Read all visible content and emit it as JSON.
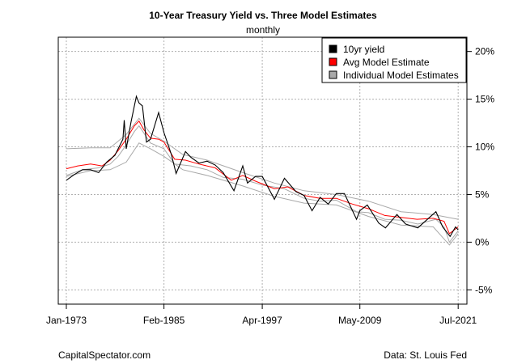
{
  "chart_data": {
    "type": "line",
    "title": "10-Year Treasury Yield vs. Three Model Estimates",
    "subtitle": "monthly",
    "xlabel": "",
    "ylabel": "",
    "x_ticks": [
      "Jan-1973",
      "Feb-1985",
      "Apr-1997",
      "May-2009",
      "Jul-2021"
    ],
    "xlim": [
      "1972-01",
      "2022-08"
    ],
    "ylim": [
      -6.5,
      21.5
    ],
    "y_ticks": [
      -5,
      0,
      5,
      10,
      15,
      20
    ],
    "y_tick_labels": [
      "-5%",
      "0%",
      "5%",
      "10%",
      "15%",
      "20%"
    ],
    "y_axis_side": "right",
    "grid": true,
    "legend_position": "top-right",
    "series": [
      {
        "name": "10yr yield",
        "color": "#000000",
        "points": [
          [
            "1973-01",
            6.5
          ],
          [
            "1974-01",
            7.1
          ],
          [
            "1975-01",
            7.6
          ],
          [
            "1976-01",
            7.6
          ],
          [
            "1977-01",
            7.3
          ],
          [
            "1978-01",
            8.4
          ],
          [
            "1979-01",
            9.1
          ],
          [
            "1980-01",
            10.8
          ],
          [
            "1980-03",
            12.8
          ],
          [
            "1980-06",
            9.8
          ],
          [
            "1981-01",
            12.6
          ],
          [
            "1981-09",
            15.3
          ],
          [
            "1982-01",
            14.6
          ],
          [
            "1982-06",
            14.3
          ],
          [
            "1982-12",
            10.5
          ],
          [
            "1983-06",
            10.8
          ],
          [
            "1984-06",
            13.6
          ],
          [
            "1985-02",
            11.5
          ],
          [
            "1986-01",
            9.2
          ],
          [
            "1986-08",
            7.2
          ],
          [
            "1987-10",
            9.5
          ],
          [
            "1988-06",
            8.9
          ],
          [
            "1989-06",
            8.3
          ],
          [
            "1990-06",
            8.5
          ],
          [
            "1991-06",
            8.1
          ],
          [
            "1992-06",
            7.3
          ],
          [
            "1993-10",
            5.4
          ],
          [
            "1994-11",
            8.0
          ],
          [
            "1995-06",
            6.2
          ],
          [
            "1996-06",
            6.9
          ],
          [
            "1997-04",
            6.9
          ],
          [
            "1998-10",
            4.5
          ],
          [
            "2000-01",
            6.7
          ],
          [
            "2001-06",
            5.3
          ],
          [
            "2002-06",
            4.9
          ],
          [
            "2003-06",
            3.3
          ],
          [
            "2004-06",
            4.7
          ],
          [
            "2005-06",
            4.0
          ],
          [
            "2006-06",
            5.1
          ],
          [
            "2007-06",
            5.1
          ],
          [
            "2008-12",
            2.4
          ],
          [
            "2009-05",
            3.3
          ],
          [
            "2010-04",
            3.9
          ],
          [
            "2011-09",
            2.0
          ],
          [
            "2012-07",
            1.5
          ],
          [
            "2013-12",
            2.9
          ],
          [
            "2015-01",
            1.9
          ],
          [
            "2016-07",
            1.5
          ],
          [
            "2018-10",
            3.2
          ],
          [
            "2019-08",
            1.6
          ],
          [
            "2020-07",
            0.6
          ],
          [
            "2021-03",
            1.6
          ],
          [
            "2021-07",
            1.3
          ]
        ]
      },
      {
        "name": "Avg Model Estimate",
        "color": "#ff0000",
        "points": [
          [
            "1973-01",
            7.7
          ],
          [
            "1974-06",
            8.0
          ],
          [
            "1976-01",
            8.2
          ],
          [
            "1977-06",
            8.0
          ],
          [
            "1978-06",
            8.6
          ],
          [
            "1979-06",
            9.6
          ],
          [
            "1980-06",
            10.8
          ],
          [
            "1981-06",
            12.2
          ],
          [
            "1982-01",
            12.7
          ],
          [
            "1982-08",
            11.8
          ],
          [
            "1983-06",
            10.9
          ],
          [
            "1984-06",
            10.8
          ],
          [
            "1985-02",
            10.5
          ],
          [
            "1986-06",
            8.7
          ],
          [
            "1987-10",
            8.6
          ],
          [
            "1989-06",
            8.2
          ],
          [
            "1991-06",
            7.8
          ],
          [
            "1993-06",
            6.5
          ],
          [
            "1994-11",
            7.0
          ],
          [
            "1996-06",
            6.4
          ],
          [
            "1998-10",
            5.6
          ],
          [
            "2000-06",
            5.8
          ],
          [
            "2002-06",
            4.9
          ],
          [
            "2004-06",
            4.6
          ],
          [
            "2006-06",
            4.6
          ],
          [
            "2008-06",
            4.0
          ],
          [
            "2010-06",
            3.5
          ],
          [
            "2012-06",
            2.8
          ],
          [
            "2014-06",
            2.6
          ],
          [
            "2016-06",
            2.4
          ],
          [
            "2018-06",
            2.5
          ],
          [
            "2019-10",
            2.2
          ],
          [
            "2020-06",
            0.9
          ],
          [
            "2021-07",
            1.6
          ]
        ]
      },
      {
        "name": "Individual Model Estimates",
        "color": "#a9a9a9",
        "points": [
          [
            "1973-01",
            7.0
          ],
          [
            "1975-01",
            7.6
          ],
          [
            "1977-01",
            7.8
          ],
          [
            "1978-06",
            8.2
          ],
          [
            "1979-06",
            9.0
          ],
          [
            "1980-06",
            10.2
          ],
          [
            "1981-06",
            11.6
          ],
          [
            "1982-01",
            12.2
          ],
          [
            "1983-06",
            10.4
          ],
          [
            "1985-02",
            9.8
          ],
          [
            "1986-06",
            8.2
          ],
          [
            "1988-06",
            8.0
          ],
          [
            "1990-06",
            7.6
          ],
          [
            "1992-06",
            6.8
          ],
          [
            "1994-11",
            6.6
          ],
          [
            "1997-04",
            6.0
          ],
          [
            "2000-01",
            5.6
          ],
          [
            "2002-06",
            4.6
          ],
          [
            "2004-06",
            4.3
          ],
          [
            "2006-06",
            4.4
          ],
          [
            "2008-12",
            3.2
          ],
          [
            "2010-06",
            3.1
          ],
          [
            "2012-06",
            2.4
          ],
          [
            "2014-06",
            2.3
          ],
          [
            "2016-07",
            1.9
          ],
          [
            "2018-10",
            2.4
          ],
          [
            "2019-10",
            1.6
          ],
          [
            "2020-06",
            0.0
          ],
          [
            "2021-07",
            1.2
          ]
        ]
      }
    ],
    "individual_band": {
      "upper": [
        [
          "1973-01",
          9.8
        ],
        [
          "1976-01",
          9.9
        ],
        [
          "1978-06",
          9.9
        ],
        [
          "1980-06",
          11.3
        ],
        [
          "1982-01",
          13.0
        ],
        [
          "1983-06",
          11.4
        ],
        [
          "1985-02",
          10.6
        ],
        [
          "1987-06",
          9.2
        ],
        [
          "1990-06",
          8.6
        ],
        [
          "1994-11",
          7.3
        ],
        [
          "1998-10",
          6.2
        ],
        [
          "2002-06",
          5.4
        ],
        [
          "2006-06",
          5.0
        ],
        [
          "2010-06",
          4.3
        ],
        [
          "2014-06",
          3.2
        ],
        [
          "2018-06",
          2.9
        ],
        [
          "2021-07",
          2.4
        ]
      ],
      "lower": [
        [
          "1973-01",
          6.9
        ],
        [
          "1976-01",
          7.5
        ],
        [
          "1978-06",
          7.6
        ],
        [
          "1980-06",
          8.4
        ],
        [
          "1982-01",
          10.4
        ],
        [
          "1983-06",
          9.8
        ],
        [
          "1985-02",
          9.0
        ],
        [
          "1987-06",
          7.6
        ],
        [
          "1990-06",
          7.0
        ],
        [
          "1994-11",
          5.9
        ],
        [
          "1998-10",
          4.8
        ],
        [
          "2002-06",
          4.1
        ],
        [
          "2006-06",
          3.9
        ],
        [
          "2010-06",
          2.7
        ],
        [
          "2014-06",
          1.8
        ],
        [
          "2018-06",
          1.6
        ],
        [
          "2020-06",
          -0.3
        ],
        [
          "2021-07",
          0.9
        ]
      ]
    },
    "legend": [
      {
        "label": "10yr yield",
        "color": "#000000"
      },
      {
        "label": "Avg Model Estimate",
        "color": "#ff0000"
      },
      {
        "label": "Individual Model Estimates",
        "color": "#a9a9a9"
      }
    ]
  },
  "footer": {
    "left": "CapitalSpectator.com",
    "right": "Data: St. Louis Fed"
  }
}
